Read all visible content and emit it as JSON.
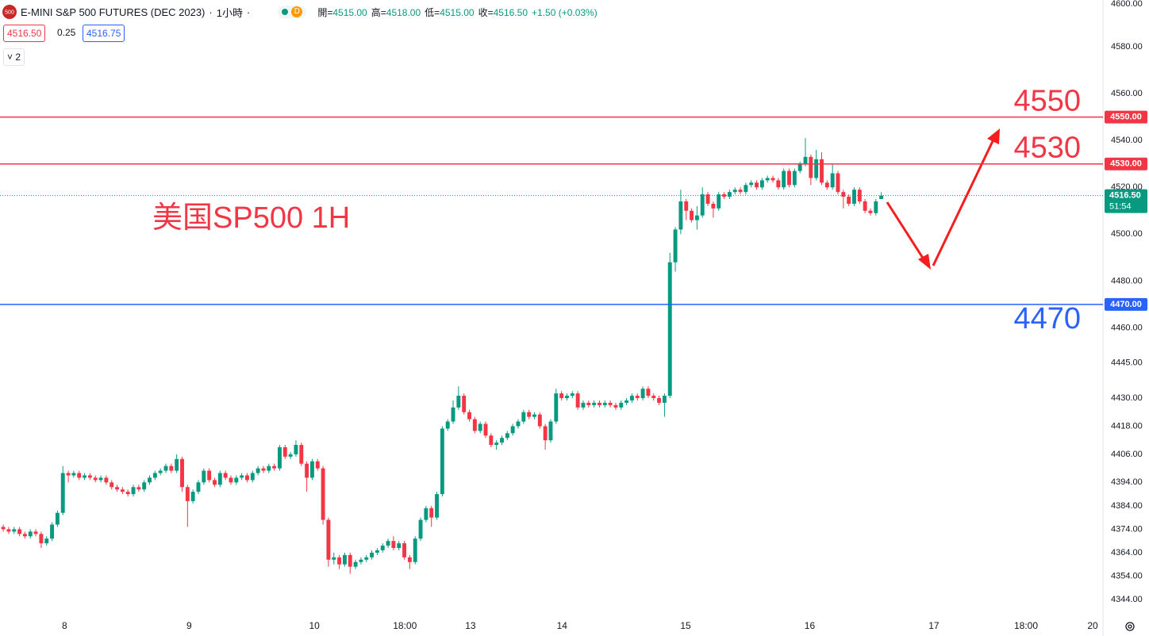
{
  "header": {
    "logo": "500",
    "symbol": "E-MINI S&P 500 FUTURES (DEC 2023)",
    "separator": "·",
    "interval": "1小時",
    "badge": "D",
    "ohlc": [
      {
        "label": "開",
        "value": "4515.00"
      },
      {
        "label": "高",
        "value": "4518.00"
      },
      {
        "label": "低",
        "value": "4515.00"
      },
      {
        "label": "收",
        "value": "4516.50"
      }
    ],
    "change": "+1.50 (+0.03%)",
    "bid": "4516.50",
    "spread": "0.25",
    "ask": "4516.75",
    "indicator_count": "2"
  },
  "chart_data": {
    "type": "candlestick",
    "annotation": "美国SP500 1H",
    "up_color": "#089981",
    "down_color": "#f23645",
    "xlim": [
      -0.6,
      202.9
    ],
    "ylim": [
      4339.25,
      4600
    ],
    "xticks": [
      {
        "value": 11.3,
        "label": "8"
      },
      {
        "value": 34.3,
        "label": "9"
      },
      {
        "value": 57.4,
        "label": "10"
      },
      {
        "value": 74.1,
        "label": "18:00"
      },
      {
        "value": 86.2,
        "label": "13"
      },
      {
        "value": 103.1,
        "label": "14"
      },
      {
        "value": 125.9,
        "label": "15"
      },
      {
        "value": 148.8,
        "label": "16"
      },
      {
        "value": 171.7,
        "label": "17"
      },
      {
        "value": 188.7,
        "label": "18:00"
      },
      {
        "value": 201,
        "label": "20"
      }
    ],
    "yticks": [
      {
        "value": 4600,
        "label": "4600.00"
      },
      {
        "value": 4580,
        "label": "4580.00"
      },
      {
        "value": 4560,
        "label": "4560.00"
      },
      {
        "value": 4540,
        "label": "4540.00"
      },
      {
        "value": 4520,
        "label": "4520.00"
      },
      {
        "value": 4500,
        "label": "4500.00"
      },
      {
        "value": 4480,
        "label": "4480.00"
      },
      {
        "value": 4460,
        "label": "4460.00"
      },
      {
        "value": 4445,
        "label": "4445.00"
      },
      {
        "value": 4430,
        "label": "4430.00"
      },
      {
        "value": 4418,
        "label": "4418.00"
      },
      {
        "value": 4406,
        "label": "4406.00"
      },
      {
        "value": 4394,
        "label": "4394.00"
      },
      {
        "value": 4384,
        "label": "4384.00"
      },
      {
        "value": 4374,
        "label": "4374.00"
      },
      {
        "value": 4364,
        "label": "4364.00"
      },
      {
        "value": 4354,
        "label": "4354.00"
      },
      {
        "value": 4344,
        "label": "4344.00"
      }
    ],
    "grid": false,
    "hlines": [
      {
        "value": 4550,
        "label": "4550",
        "axis_label": "4550.00",
        "color": "#f23645"
      },
      {
        "value": 4530,
        "label": "4530",
        "axis_label": "4530.00",
        "color": "#f23645"
      },
      {
        "value": 4470,
        "label": "4470",
        "axis_label": "4470.00",
        "color": "#2962ff"
      }
    ],
    "last_price_label": "4516.50",
    "countdown": "51:54",
    "open": [
      4375,
      4374,
      4373,
      4374,
      4372,
      4371,
      4373,
      4372,
      4368,
      4370,
      4376,
      4381,
      4398,
      4397,
      4398,
      4396,
      4397,
      4396,
      4395,
      4396,
      4394,
      4392,
      4391,
      4390,
      4389,
      4392,
      4391,
      4394,
      4396,
      4398,
      4399,
      4401,
      4399,
      4404,
      4392,
      4386,
      4390,
      4394,
      4399,
      4395,
      4393,
      4398,
      4396,
      4394,
      4396,
      4397,
      4395,
      4398,
      4400,
      4399,
      4401,
      4400,
      4409,
      4405,
      4406,
      4410,
      4402,
      4396,
      4403,
      4400,
      4378,
      4361,
      4362,
      4359,
      4363,
      4358,
      4360,
      4361,
      4362,
      4364,
      4365,
      4367,
      4369,
      4366,
      4368,
      4362,
      4360,
      4370,
      4378,
      4383,
      4379,
      4389,
      4417,
      4420,
      4426,
      4431,
      4424,
      4421,
      4416,
      4419,
      4414,
      4410,
      4411,
      4413,
      4415,
      4418,
      4420,
      4424,
      4422,
      4423,
      4418,
      4412,
      4420,
      4432,
      4430,
      4431,
      4432,
      4426,
      4428,
      4427,
      4428,
      4427,
      4428,
      4427,
      4426,
      4428,
      4429,
      4431,
      4430,
      4434,
      4431,
      4430,
      4428,
      4431,
      4488,
      4502,
      4514,
      4510,
      4506,
      4508,
      4517,
      4513,
      4511,
      4517,
      4516,
      4518,
      4519,
      4518,
      4521,
      4522,
      4520,
      4523,
      4524,
      4523,
      4520,
      4527,
      4521,
      4527,
      4530,
      4533,
      4524,
      4532,
      4522,
      4520,
      4526,
      4518,
      4516,
      4513,
      4519,
      4514,
      4510,
      4509,
      4515
    ],
    "high": [
      4376,
      4375,
      4375,
      4375,
      4373,
      4374,
      4374,
      4373,
      4371,
      4377,
      4382,
      4401,
      4399,
      4399,
      4399,
      4398,
      4398,
      4397,
      4397,
      4397,
      4395,
      4393,
      4392,
      4391,
      4393,
      4393,
      4395,
      4397,
      4399,
      4400,
      4402,
      4402,
      4406,
      4405,
      4393,
      4391,
      4395,
      4400,
      4400,
      4396,
      4399,
      4399,
      4397,
      4397,
      4398,
      4398,
      4399,
      4401,
      4401,
      4402,
      4402,
      4410,
      4410,
      4407,
      4412,
      4411,
      4403,
      4404,
      4404,
      4401,
      4379,
      4364,
      4363,
      4364,
      4364,
      4361,
      4362,
      4363,
      4365,
      4366,
      4368,
      4370,
      4371,
      4369,
      4369,
      4363,
      4371,
      4379,
      4384,
      4384,
      4390,
      4418,
      4421,
      4429,
      4435,
      4432,
      4425,
      4422,
      4420,
      4420,
      4415,
      4412,
      4414,
      4416,
      4419,
      4421,
      4425,
      4425,
      4424,
      4424,
      4419,
      4421,
      4434,
      4433,
      4432,
      4433,
      4433,
      4429,
      4429,
      4429,
      4429,
      4429,
      4429,
      4428,
      4429,
      4430,
      4432,
      4432,
      4435,
      4435,
      4432,
      4431,
      4432,
      4492,
      4503,
      4519,
      4515,
      4511,
      4512,
      4520,
      4518,
      4514,
      4518,
      4518,
      4519,
      4520,
      4520,
      4522,
      4523,
      4523,
      4524,
      4525,
      4525,
      4524,
      4528,
      4528,
      4528,
      4531,
      4541,
      4534,
      4536,
      4535,
      4523,
      4530,
      4527,
      4519,
      4517,
      4520,
      4520,
      4515,
      4511,
      4515,
      4518
    ],
    "low": [
      4373,
      4372,
      4372,
      4371,
      4370,
      4370,
      4371,
      4366,
      4367,
      4369,
      4375,
      4380,
      4394,
      4396,
      4395,
      4395,
      4395,
      4394,
      4394,
      4393,
      4391,
      4390,
      4389,
      4388,
      4388,
      4390,
      4390,
      4393,
      4395,
      4397,
      4398,
      4398,
      4398,
      4390,
      4375,
      4385,
      4389,
      4393,
      4394,
      4392,
      4392,
      4395,
      4393,
      4393,
      4395,
      4394,
      4394,
      4397,
      4398,
      4398,
      4399,
      4399,
      4404,
      4404,
      4405,
      4401,
      4390,
      4395,
      4399,
      4376,
      4358,
      4359,
      4357,
      4358,
      4355,
      4357,
      4359,
      4360,
      4361,
      4363,
      4364,
      4366,
      4365,
      4365,
      4361,
      4357,
      4359,
      4369,
      4377,
      4375,
      4378,
      4388,
      4416,
      4419,
      4425,
      4423,
      4420,
      4415,
      4415,
      4413,
      4409,
      4408,
      4410,
      4412,
      4414,
      4417,
      4419,
      4421,
      4421,
      4417,
      4408,
      4411,
      4419,
      4429,
      4429,
      4430,
      4425,
      4425,
      4426,
      4426,
      4426,
      4426,
      4426,
      4425,
      4425,
      4427,
      4428,
      4429,
      4429,
      4430,
      4429,
      4427,
      4422,
      4430,
      4484,
      4500,
      4506,
      4505,
      4502,
      4507,
      4512,
      4507,
      4510,
      4515,
      4515,
      4517,
      4517,
      4517,
      4520,
      4519,
      4519,
      4522,
      4522,
      4519,
      4519,
      4520,
      4520,
      4526,
      4529,
      4521,
      4523,
      4521,
      4519,
      4519,
      4517,
      4511,
      4512,
      4512,
      4513,
      4509,
      4508,
      4508,
      4515
    ],
    "close": [
      4374,
      4373,
      4374,
      4372,
      4371,
      4373,
      4372,
      4368,
      4370,
      4376,
      4381,
      4398,
      4397,
      4398,
      4396,
      4397,
      4396,
      4395,
      4396,
      4394,
      4392,
      4391,
      4390,
      4389,
      4392,
      4391,
      4394,
      4396,
      4398,
      4399,
      4401,
      4399,
      4404,
      4392,
      4386,
      4390,
      4394,
      4399,
      4395,
      4393,
      4398,
      4396,
      4394,
      4396,
      4397,
      4395,
      4398,
      4400,
      4399,
      4401,
      4400,
      4409,
      4405,
      4406,
      4410,
      4402,
      4396,
      4403,
      4400,
      4378,
      4361,
      4362,
      4359,
      4363,
      4358,
      4360,
      4361,
      4362,
      4364,
      4365,
      4367,
      4369,
      4366,
      4368,
      4362,
      4360,
      4370,
      4378,
      4383,
      4379,
      4389,
      4417,
      4420,
      4426,
      4431,
      4424,
      4421,
      4416,
      4419,
      4414,
      4410,
      4411,
      4413,
      4415,
      4418,
      4420,
      4424,
      4422,
      4423,
      4418,
      4412,
      4420,
      4432,
      4430,
      4431,
      4432,
      4426,
      4428,
      4427,
      4428,
      4427,
      4428,
      4427,
      4426,
      4428,
      4429,
      4431,
      4430,
      4434,
      4431,
      4430,
      4428,
      4431,
      4488,
      4502,
      4514,
      4510,
      4506,
      4508,
      4517,
      4513,
      4511,
      4517,
      4516,
      4518,
      4519,
      4518,
      4521,
      4522,
      4520,
      4523,
      4524,
      4523,
      4520,
      4527,
      4521,
      4527,
      4530,
      4533,
      4524,
      4532,
      4522,
      4520,
      4526,
      4518,
      4516,
      4513,
      4519,
      4514,
      4510,
      4509,
      4514,
      4516.5
    ]
  }
}
